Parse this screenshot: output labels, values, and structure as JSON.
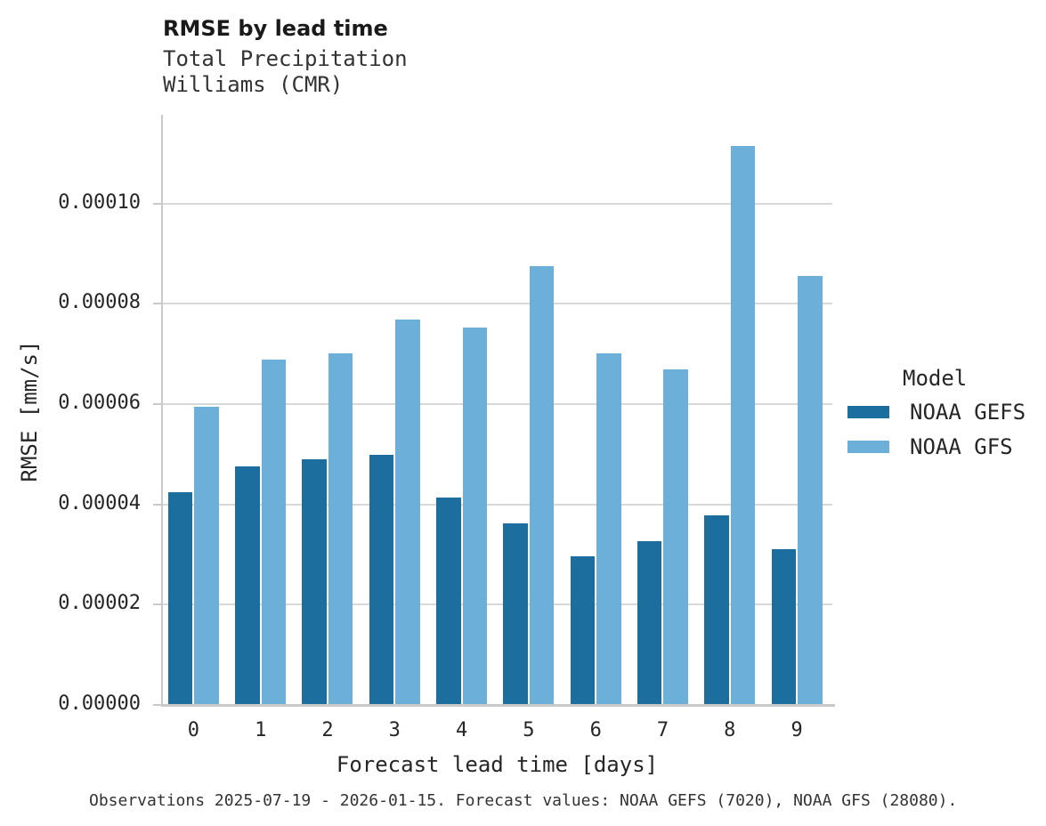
{
  "header": {
    "title": "RMSE by lead time",
    "subtitle_line1": "Total Precipitation",
    "subtitle_line2": "Williams (CMR)"
  },
  "chart_data": {
    "type": "bar",
    "title": "RMSE by lead time",
    "subtitle": "Total Precipitation\nWilliams (CMR)",
    "xlabel": "Forecast lead time [days]",
    "ylabel": "RMSE [mm/s]",
    "categories": [
      "0",
      "1",
      "2",
      "3",
      "4",
      "5",
      "6",
      "7",
      "8",
      "9"
    ],
    "series": [
      {
        "name": "NOAA GEFS",
        "color": "#1b6e9e",
        "values": [
          4.25e-05,
          4.76e-05,
          4.9e-05,
          4.99e-05,
          4.13e-05,
          3.62e-05,
          2.96e-05,
          3.27e-05,
          3.78e-05,
          3.1e-05
        ]
      },
      {
        "name": "NOAA GFS",
        "color": "#6cb0d9",
        "values": [
          5.95e-05,
          6.88e-05,
          7.01e-05,
          7.68e-05,
          7.53e-05,
          8.75e-05,
          7.01e-05,
          6.7e-05,
          0.0001115,
          8.55e-05
        ]
      }
    ],
    "ylim": [
      0,
      0.0001177
    ],
    "yticks": [
      0,
      2e-05,
      4e-05,
      6e-05,
      8e-05,
      0.0001
    ],
    "ytick_labels": [
      "0.00000",
      "0.00002",
      "0.00004",
      "0.00006",
      "0.00008",
      "0.00010"
    ],
    "grid": "horizontal",
    "legend_title": "Model",
    "legend_position": "right"
  },
  "legend": {
    "title": "Model",
    "entries": [
      {
        "label": "NOAA GEFS",
        "color": "#1b6e9e"
      },
      {
        "label": "NOAA GFS",
        "color": "#6cb0d9"
      }
    ]
  },
  "caption": "Observations 2025-07-19 - 2026-01-15. Forecast values: NOAA GEFS (7020), NOAA GFS (28080)."
}
